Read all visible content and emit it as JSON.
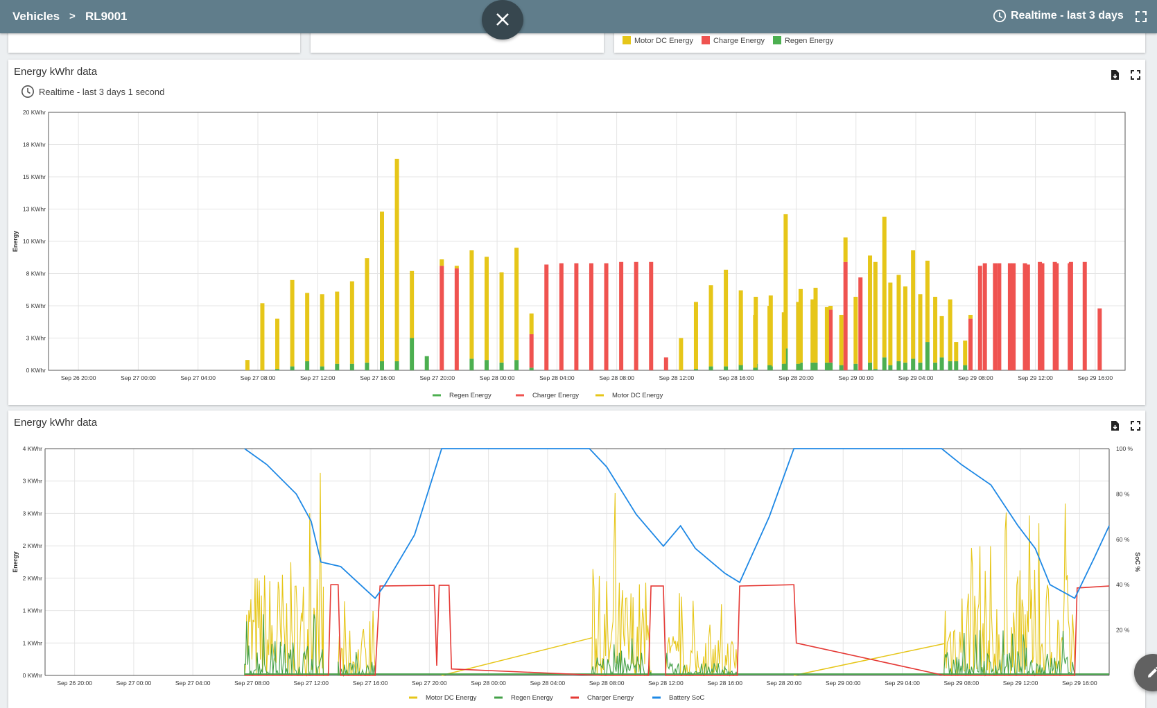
{
  "header": {
    "breadcrumb_root": "Vehicles",
    "breadcrumb_sep": ">",
    "breadcrumb_current": "RL9001",
    "time_range": "Realtime - last 3 days",
    "close_icon": "close-icon",
    "clock_icon": "clock-icon",
    "fullscreen_icon": "fullscreen-icon"
  },
  "top_legend": {
    "items": [
      {
        "label": "Motor DC Energy",
        "color": "#e6c619"
      },
      {
        "label": "Charge Energy",
        "color": "#ef5350"
      },
      {
        "label": "Regen Energy",
        "color": "#4caf50"
      }
    ]
  },
  "panel1": {
    "title": "Energy kWhr data",
    "subtitle": "Realtime - last 3 days 1 second",
    "export_icon": "export-file-icon",
    "fullscreen_icon": "fullscreen-icon"
  },
  "panel2": {
    "title": "Energy kWhr data",
    "export_icon": "export-file-icon",
    "fullscreen_icon": "fullscreen-icon"
  },
  "edit_icon": "pencil-icon",
  "chart_data": [
    {
      "type": "bar",
      "stacked": true,
      "ylabel": "Energy",
      "ylim": [
        0,
        20
      ],
      "y_ticks": [
        0,
        2.5,
        5,
        7.5,
        10,
        12.5,
        15,
        17.5,
        20
      ],
      "y_tick_labels": [
        "0 KWhr",
        "3 KWhr",
        "5 KWhr",
        "8 KWhr",
        "10 KWhr",
        "13 KWhr",
        "15 KWhr",
        "18 KWhr",
        "20 KWhr"
      ],
      "x_range": [
        "2024-09-26T18:00",
        "2024-09-29T18:00"
      ],
      "x_tick_labels": [
        "Sep 26 20:00",
        "Sep 27 00:00",
        "Sep 27 04:00",
        "Sep 27 08:00",
        "Sep 27 12:00",
        "Sep 27 16:00",
        "Sep 27 20:00",
        "Sep 28 00:00",
        "Sep 28 04:00",
        "Sep 28 08:00",
        "Sep 28 12:00",
        "Sep 28 16:00",
        "Sep 28 20:00",
        "Sep 29 00:00",
        "Sep 29 04:00",
        "Sep 29 08:00",
        "Sep 29 12:00",
        "Sep 29 16:00"
      ],
      "legend": [
        "Regen Energy",
        "Charger Energy",
        "Motor DC Energy"
      ],
      "legend_colors": [
        "#4caf50",
        "#ef5350",
        "#e6c619"
      ],
      "grid": true,
      "series": [
        {
          "name": "Regen Energy",
          "values": [
            0,
            0,
            0.1,
            0.3,
            0.7,
            0.3,
            0.5,
            0.5,
            0.6,
            0.7,
            0.7,
            2.5,
            1.1,
            0,
            0,
            0.9,
            0.8,
            0.6,
            0.8,
            0.2,
            0,
            0,
            0,
            0,
            0,
            0,
            0,
            0,
            0,
            0,
            0.1,
            0.3,
            0.3,
            0.5,
            0.5,
            0.3,
            1.7,
            0.6,
            0.6,
            0.6,
            0,
            0,
            0.1,
            0.4,
            0.6,
            0.6,
            0.6,
            0.7,
            0.4,
            0,
            0,
            0,
            0,
            0,
            0,
            0,
            0,
            0,
            0.4,
            0.2,
            0.4,
            0.5,
            0.5,
            0.6,
            0.6,
            0.4,
            0.5,
            0.6,
            1.0,
            0.7,
            0.9,
            2.2,
            1.0,
            0.7,
            0,
            0,
            0,
            0,
            0,
            0,
            0,
            0
          ]
        },
        {
          "name": "Charger Energy",
          "values": [
            0,
            0,
            0,
            0,
            0,
            0,
            0,
            0,
            0,
            0,
            0,
            0,
            0,
            8.1,
            7.9,
            0,
            0,
            0,
            0,
            2.6,
            8.2,
            8.3,
            8.3,
            8.3,
            8.3,
            8.4,
            8.4,
            8.4,
            1.0,
            0,
            0,
            0,
            0,
            0,
            0,
            0,
            0,
            0,
            0,
            4.1,
            8.4,
            7.2,
            0,
            0,
            0,
            0,
            0,
            0,
            0,
            8.1,
            8.3,
            8.3,
            8.3,
            8.4,
            8.4,
            8.3,
            8.4,
            4.8,
            0,
            0,
            0,
            0,
            0,
            0,
            0,
            0,
            0,
            0,
            0,
            0,
            0,
            0,
            0,
            0,
            4.0,
            8.3,
            8.3,
            8.3,
            8.2,
            8.3,
            8.3,
            8.4
          ]
        },
        {
          "name": "Motor DC Energy",
          "values": [
            0.8,
            5.2,
            3.9,
            6.7,
            5.3,
            5.6,
            5.6,
            6.4,
            8.1,
            11.6,
            15.7,
            5.2,
            0,
            0.5,
            0.2,
            8.4,
            8.0,
            7.0,
            8.7,
            1.6,
            0,
            0,
            0,
            0,
            0,
            0,
            0,
            0,
            0,
            2.5,
            5.2,
            6.3,
            7.5,
            5.7,
            5.2,
            5.5,
            10.4,
            5.7,
            5.8,
            0.3,
            1.9,
            0,
            8.3,
            6.4,
            5.9,
            5.3,
            5.1,
            4.8,
            1.9,
            0,
            0,
            0,
            0,
            0,
            0,
            0,
            0,
            0,
            4.3,
            4.1,
            4.6,
            4.0,
            4.8,
            4.9,
            4.3,
            3.9,
            5.2,
            8.3,
            10.9,
            6.7,
            8.4,
            6.3,
            3.2,
            1.5,
            0.3,
            0,
            0,
            0,
            0,
            0,
            0,
            0
          ]
        }
      ]
    },
    {
      "type": "line",
      "ylabel": "Energy",
      "ylabel_right": "SoC %",
      "ylim": [
        0,
        3.5
      ],
      "ylim_right": [
        0,
        100
      ],
      "y_ticks": [
        0,
        0.5,
        1,
        1.5,
        2,
        2.5,
        3,
        3.5
      ],
      "y_tick_labels": [
        "0 KWhr",
        "1 KWhr",
        "1 KWhr",
        "2 KWhr",
        "2 KWhr",
        "3 KWhr",
        "3 KWhr",
        "4 KWhr"
      ],
      "y_right_ticks": [
        20,
        40,
        60,
        80,
        100
      ],
      "y_right_tick_labels": [
        "20 %",
        "40 %",
        "60 %",
        "80 %",
        "100 %"
      ],
      "x_range": [
        "2024-09-26T18:00",
        "2024-09-29T18:00"
      ],
      "x_tick_labels": [
        "Sep 26 20:00",
        "Sep 27 00:00",
        "Sep 27 04:00",
        "Sep 27 08:00",
        "Sep 27 12:00",
        "Sep 27 16:00",
        "Sep 27 20:00",
        "Sep 28 00:00",
        "Sep 28 04:00",
        "Sep 28 08:00",
        "Sep 28 12:00",
        "Sep 28 16:00",
        "Sep 28 20:00",
        "Sep 29 00:00",
        "Sep 29 04:00",
        "Sep 29 08:00",
        "Sep 29 12:00",
        "Sep 29 16:00"
      ],
      "legend": [
        "Motor DC Energy",
        "Regen Energy",
        "Charger Energy",
        "Battery SoC"
      ],
      "legend_colors": [
        "#e6c619",
        "#43a047",
        "#e53935",
        "#1e88e5"
      ],
      "grid": true,
      "series": [
        {
          "name": "Battery SoC",
          "axis": "right",
          "points": [
            [
              "Sep 27 07:30",
              100
            ],
            [
              "Sep 27 09:00",
              93
            ],
            [
              "Sep 27 11:00",
              80
            ],
            [
              "Sep 27 12:00",
              68
            ],
            [
              "Sep 27 12:40",
              50
            ],
            [
              "Sep 27 14:00",
              48
            ],
            [
              "Sep 27 15:00",
              42
            ],
            [
              "Sep 27 16:20",
              34
            ],
            [
              "Sep 27 17:00",
              40
            ],
            [
              "Sep 27 19:00",
              62
            ],
            [
              "Sep 27 20:50",
              100
            ],
            [
              "Sep 28 06:50",
              100
            ],
            [
              "Sep 28 08:00",
              92
            ],
            [
              "Sep 28 10:00",
              71
            ],
            [
              "Sep 28 11:50",
              57
            ],
            [
              "Sep 28 13:00",
              66
            ],
            [
              "Sep 28 14:00",
              56
            ],
            [
              "Sep 28 16:00",
              45
            ],
            [
              "Sep 28 17:00",
              41
            ],
            [
              "Sep 28 19:00",
              70
            ],
            [
              "Sep 28 20:40",
              100
            ],
            [
              "Sep 29 06:40",
              100
            ],
            [
              "Sep 29 08:00",
              93
            ],
            [
              "Sep 29 10:00",
              84
            ],
            [
              "Sep 29 11:50",
              66
            ],
            [
              "Sep 29 13:00",
              56
            ],
            [
              "Sep 29 14:00",
              40
            ],
            [
              "Sep 29 15:40",
              34
            ],
            [
              "Sep 29 17:00",
              52
            ],
            [
              "Sep 29 18:00",
              66
            ]
          ]
        },
        {
          "name": "Charger Energy",
          "axis": "left",
          "points": [
            [
              "Sep 27 07:30",
              0
            ],
            [
              "Sep 27 13:10",
              0
            ],
            [
              "Sep 27 13:20",
              1.4
            ],
            [
              "Sep 27 13:50",
              1.4
            ],
            [
              "Sep 27 14:00",
              0
            ],
            [
              "Sep 27 16:20",
              0
            ],
            [
              "Sep 27 16:40",
              1.38
            ],
            [
              "Sep 27 20:20",
              1.39
            ],
            [
              "Sep 27 20:30",
              0.15
            ],
            [
              "Sep 27 20:40",
              1.39
            ],
            [
              "Sep 27 21:20",
              1.39
            ],
            [
              "Sep 27 21:30",
              0.1
            ],
            [
              "Sep 28 07:40",
              0
            ],
            [
              "Sep 28 10:50",
              0
            ],
            [
              "Sep 28 11:00",
              1.38
            ],
            [
              "Sep 28 11:50",
              1.38
            ],
            [
              "Sep 28 12:00",
              0
            ],
            [
              "Sep 28 16:50",
              0
            ],
            [
              "Sep 28 17:00",
              1.38
            ],
            [
              "Sep 28 20:40",
              1.4
            ],
            [
              "Sep 28 20:50",
              0.5
            ],
            [
              "Sep 29 06:50",
              0
            ],
            [
              "Sep 29 15:40",
              0
            ],
            [
              "Sep 29 15:50",
              1.35
            ],
            [
              "Sep 29 18:00",
              1.38
            ]
          ]
        },
        {
          "name": "Motor DC Energy",
          "axis": "left",
          "bursts": [
            [
              "Sep 27 07:30",
              "Sep 27 12:50",
              3.2
            ],
            [
              "Sep 27 13:50",
              "Sep 27 16:20",
              1.4
            ],
            [
              "Sep 28 07:00",
              "Sep 28 11:00",
              2.85
            ],
            [
              "Sep 28 12:00",
              "Sep 28 16:50",
              1.3
            ],
            [
              "Sep 29 06:50",
              "Sep 29 15:40",
              3.05
            ]
          ]
        },
        {
          "name": "Regen Energy",
          "axis": "left",
          "bursts": [
            [
              "Sep 27 07:30",
              "Sep 27 12:50",
              1.0
            ],
            [
              "Sep 27 13:50",
              "Sep 27 16:20",
              0.4
            ],
            [
              "Sep 28 07:00",
              "Sep 28 11:00",
              0.6
            ],
            [
              "Sep 28 12:00",
              "Sep 28 16:50",
              0.35
            ],
            [
              "Sep 29 06:50",
              "Sep 29 15:40",
              0.7
            ]
          ]
        }
      ]
    }
  ]
}
